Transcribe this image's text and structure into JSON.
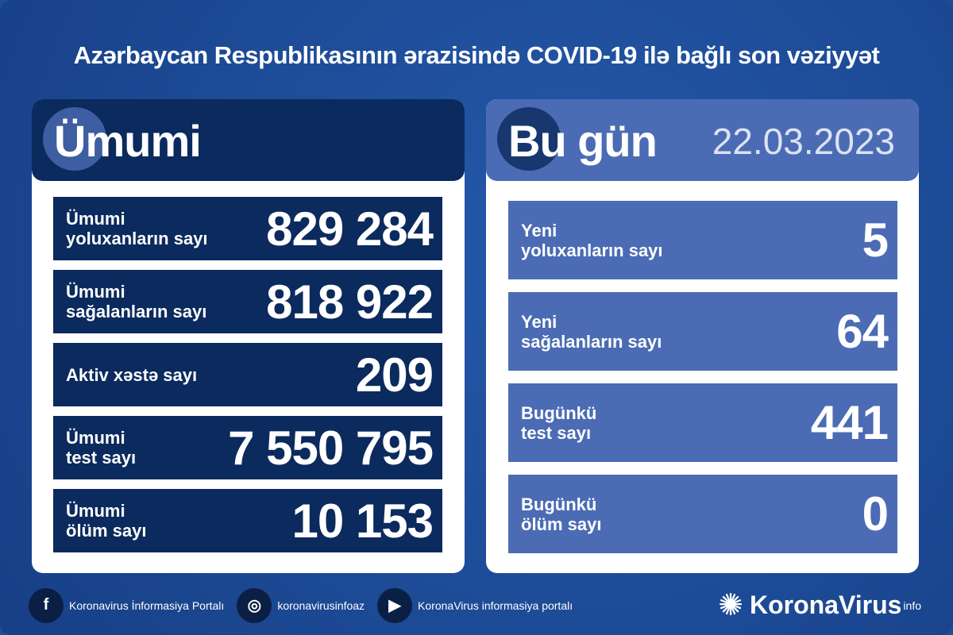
{
  "title": "Azərbaycan Respublikasının ərazisində COVID-19 ilə bağlı son vəziyyət",
  "colors": {
    "background": "#1c4e9c",
    "navy": "#0b2a5e",
    "light_blue": "#4b6cb4"
  },
  "total": {
    "heading": "Ümumi",
    "rows": [
      {
        "label1": "Ümumi",
        "label2": "yoluxanların sayı",
        "value": "829 284"
      },
      {
        "label1": "Ümumi",
        "label2": "sağalanların sayı",
        "value": "818 922"
      },
      {
        "label1": "Aktiv xəstə sayı",
        "label2": "",
        "value": "209"
      },
      {
        "label1": "Ümumi",
        "label2": "test sayı",
        "value": "7 550 795"
      },
      {
        "label1": "Ümumi",
        "label2": "ölüm sayı",
        "value": "10 153"
      }
    ]
  },
  "today": {
    "heading": "Bu gün",
    "date": "22.03.2023",
    "rows": [
      {
        "label1": "Yeni",
        "label2": "yoluxanların sayı",
        "value": "5"
      },
      {
        "label1": "Yeni",
        "label2": "sağalanların sayı",
        "value": "64"
      },
      {
        "label1": "Bugünkü",
        "label2": "test sayı",
        "value": "441"
      },
      {
        "label1": "Bugünkü",
        "label2": "ölüm sayı",
        "value": "0"
      }
    ]
  },
  "footer": {
    "facebook": "Koronavirus İnformasiya Portalı",
    "instagram": "koronavirusinfoaz",
    "youtube": "KoronaVirus informasiya portalı",
    "logo": "KoronaVirus",
    "logo_sup": "info"
  }
}
